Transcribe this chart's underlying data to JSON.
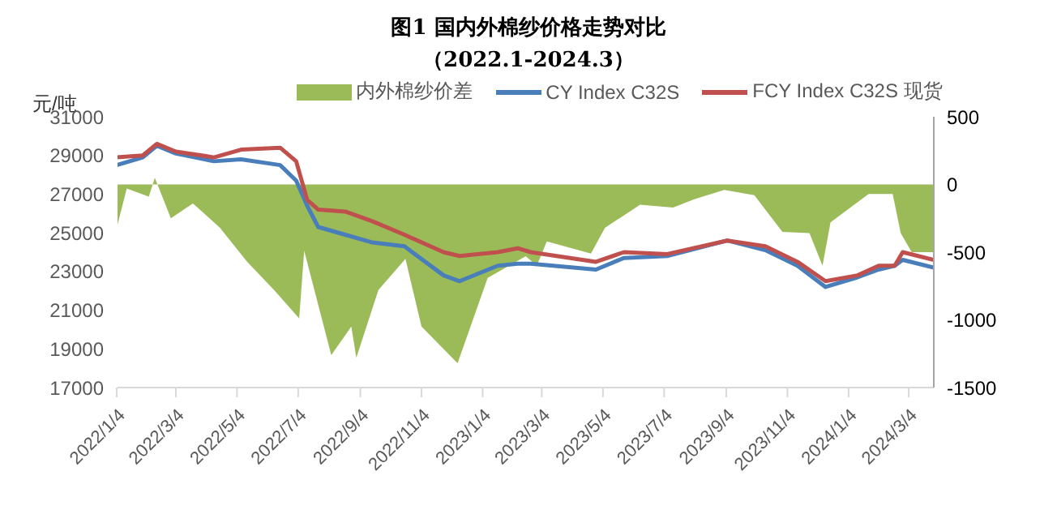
{
  "chart_data": {
    "type": "line",
    "title": "图1 国内外棉纱价格走势对比",
    "subtitle": "（2022.1-2024.3）",
    "ylabel": "元/吨",
    "xlim": [
      "2022-01-04",
      "2024-03-29"
    ],
    "xticks": [
      {
        "value": "2022-01-04",
        "label": "2022/1/4"
      },
      {
        "value": "2022-03-04",
        "label": "2022/3/4"
      },
      {
        "value": "2022-05-04",
        "label": "2022/5/4"
      },
      {
        "value": "2022-07-04",
        "label": "2022/7/4"
      },
      {
        "value": "2022-09-04",
        "label": "2022/9/4"
      },
      {
        "value": "2022-11-04",
        "label": "2022/11/4"
      },
      {
        "value": "2023-01-04",
        "label": "2023/1/4"
      },
      {
        "value": "2023-03-04",
        "label": "2023/3/4"
      },
      {
        "value": "2023-05-04",
        "label": "2023/5/4"
      },
      {
        "value": "2023-07-04",
        "label": "2023/7/4"
      },
      {
        "value": "2023-09-04",
        "label": "2023/9/4"
      },
      {
        "value": "2023-11-04",
        "label": "2023/11/4"
      },
      {
        "value": "2024-01-04",
        "label": "2024/1/4"
      },
      {
        "value": "2024-03-04",
        "label": "2024/3/4"
      }
    ],
    "ylim": [
      17000,
      31000
    ],
    "yticks": [
      17000,
      19000,
      21000,
      23000,
      25000,
      27000,
      29000,
      31000
    ],
    "y2lim": [
      -1500,
      500
    ],
    "y2ticks": [
      -1500,
      -1000,
      -500,
      0,
      500
    ],
    "legend": "top",
    "marker": "none",
    "series": [
      {
        "name": "内外棉纱价差",
        "type": "area",
        "axis": "y2",
        "color": "#9bbb59",
        "x": [
          "2022-01-04",
          "2022-01-14",
          "2022-02-05",
          "2022-02-11",
          "2022-02-27",
          "2022-03-21",
          "2022-04-17",
          "2022-05-14",
          "2022-06-10",
          "2022-07-05",
          "2022-07-10",
          "2022-08-06",
          "2022-08-26",
          "2022-08-31",
          "2022-09-22",
          "2022-10-19",
          "2022-11-04",
          "2022-12-10",
          "2023-01-09",
          "2023-02-16",
          "2023-02-27",
          "2023-03-09",
          "2023-04-22",
          "2023-05-06",
          "2023-06-10",
          "2023-07-13",
          "2023-08-03",
          "2023-09-02",
          "2023-10-02",
          "2023-10-30",
          "2023-11-26",
          "2023-12-09",
          "2023-12-17",
          "2024-01-24",
          "2024-02-17",
          "2024-02-25",
          "2024-03-07",
          "2024-03-29"
        ],
        "values": [
          -320,
          -30,
          -90,
          50,
          -250,
          -140,
          -320,
          -570,
          -780,
          -990,
          -490,
          -1260,
          -1050,
          -1280,
          -780,
          -550,
          -1050,
          -1320,
          -690,
          -530,
          -600,
          -420,
          -510,
          -320,
          -150,
          -170,
          -110,
          -40,
          -80,
          -350,
          -360,
          -600,
          -280,
          -70,
          -70,
          -360,
          -500,
          -500
        ]
      },
      {
        "name": "CY Index C32S",
        "color": "#4a7ebb",
        "x": [
          "2022-01-04",
          "2022-01-30",
          "2022-02-13",
          "2022-03-04",
          "2022-04-11",
          "2022-05-08",
          "2022-06-16",
          "2022-07-02",
          "2022-07-13",
          "2022-07-24",
          "2022-08-20",
          "2022-09-16",
          "2022-10-18",
          "2022-11-26",
          "2022-12-12",
          "2023-01-19",
          "2023-02-08",
          "2023-02-21",
          "2023-04-27",
          "2023-05-25",
          "2023-07-07",
          "2023-09-05",
          "2023-10-13",
          "2023-11-14",
          "2023-12-12",
          "2024-01-13",
          "2024-02-03",
          "2024-02-19",
          "2024-02-27",
          "2024-03-29"
        ],
        "values": [
          28500,
          28900,
          29500,
          29100,
          28700,
          28800,
          28500,
          27700,
          26400,
          25300,
          24900,
          24500,
          24300,
          22800,
          22500,
          23300,
          23400,
          23400,
          23100,
          23700,
          23800,
          24600,
          24100,
          23300,
          22200,
          22700,
          23100,
          23300,
          23600,
          23200
        ]
      },
      {
        "name": "FCY Index C32S 现货",
        "color": "#c0504d",
        "x": [
          "2022-01-04",
          "2022-01-30",
          "2022-02-13",
          "2022-03-04",
          "2022-04-11",
          "2022-05-08",
          "2022-06-16",
          "2022-07-02",
          "2022-07-13",
          "2022-07-24",
          "2022-08-20",
          "2022-09-16",
          "2022-10-18",
          "2022-11-26",
          "2022-12-12",
          "2023-01-19",
          "2023-02-08",
          "2023-02-21",
          "2023-04-27",
          "2023-05-25",
          "2023-07-07",
          "2023-09-05",
          "2023-10-13",
          "2023-11-14",
          "2023-12-12",
          "2024-01-13",
          "2024-02-03",
          "2024-02-19",
          "2024-02-27",
          "2024-03-29"
        ],
        "values": [
          28900,
          29000,
          29600,
          29200,
          28900,
          29300,
          29400,
          28700,
          26700,
          26200,
          26100,
          25600,
          24900,
          24000,
          23800,
          24000,
          24200,
          24000,
          23500,
          24000,
          23900,
          24600,
          24300,
          23500,
          22500,
          22800,
          23300,
          23300,
          24000,
          23600
        ]
      }
    ]
  }
}
